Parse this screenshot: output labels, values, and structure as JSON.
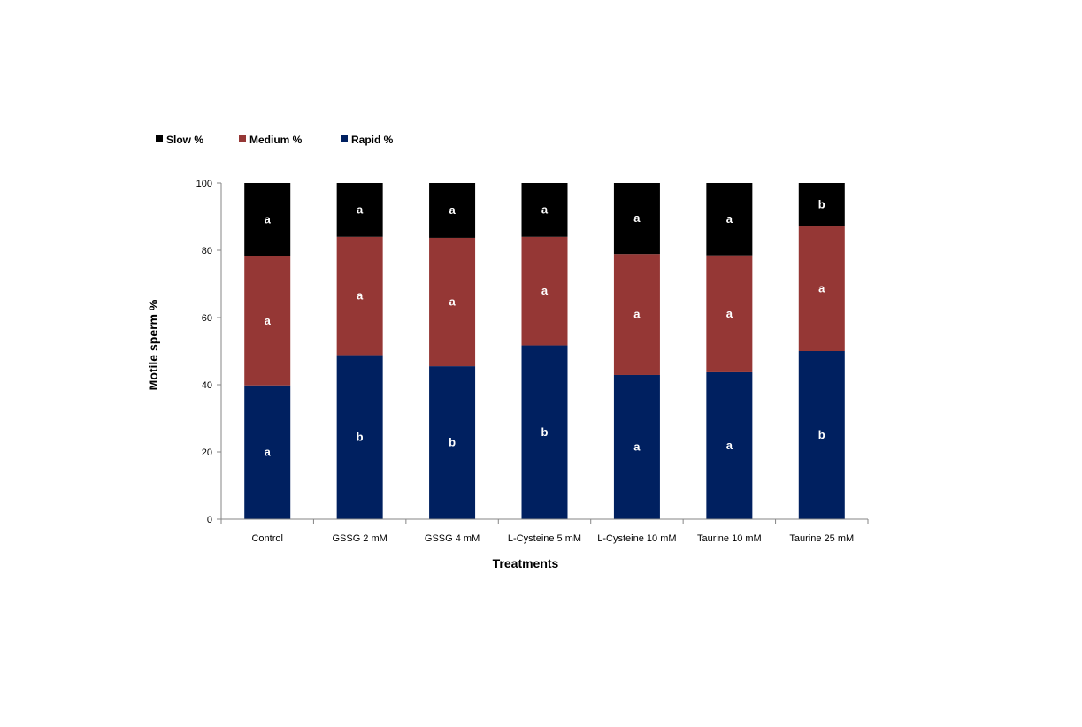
{
  "chart_data": {
    "type": "bar",
    "stacked": true,
    "xlabel": "Treatments",
    "ylabel": "Motile  sperm %",
    "ylim": [
      0,
      100
    ],
    "yticks": [
      0,
      20,
      40,
      60,
      80,
      100
    ],
    "legend_position": "top-left",
    "categories": [
      "Control",
      "GSSG 2 mM",
      "GSSG 4 mM",
      "L-Cysteine 5 mM",
      "L-Cysteine 10 mM",
      "Taurine 10 mM",
      "Taurine 25 mM"
    ],
    "series": [
      {
        "name": "Rapid %",
        "color": "#002060",
        "values": [
          39.8,
          48.8,
          45.5,
          51.7,
          42.9,
          43.7,
          50.0
        ],
        "labels": [
          "a",
          "b",
          "b",
          "b",
          "a",
          "a",
          "b"
        ]
      },
      {
        "name": "Medium %",
        "color": "#953735",
        "values": [
          38.4,
          35.2,
          38.2,
          32.3,
          36.0,
          34.8,
          37.1
        ],
        "labels": [
          "a",
          "a",
          "a",
          "a",
          "a",
          "a",
          "a"
        ]
      },
      {
        "name": "Slow %",
        "color": "#000000",
        "values": [
          21.8,
          16.0,
          16.3,
          16.0,
          21.1,
          21.5,
          12.9
        ],
        "labels": [
          "a",
          "a",
          "a",
          "a",
          "a",
          "a",
          "b"
        ]
      }
    ],
    "legend_order": [
      "Slow %",
      "Medium %",
      "Rapid %"
    ]
  }
}
